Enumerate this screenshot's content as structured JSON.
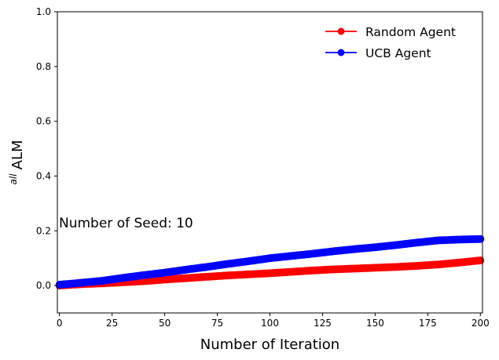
{
  "chart_data": {
    "type": "line",
    "title": "",
    "xlabel": "Number of Iteration",
    "ylabel_italic": "all",
    "ylabel": "ALM",
    "xlim": [
      -1,
      201
    ],
    "ylim": [
      -0.1,
      1.0
    ],
    "xticks": [
      0,
      25,
      50,
      75,
      100,
      125,
      150,
      175,
      200
    ],
    "xtick_labels": [
      "0",
      "25",
      "50",
      "75",
      "100",
      "125",
      "150",
      "175",
      "200"
    ],
    "yticks": [
      0.0,
      0.2,
      0.4,
      0.6,
      0.8,
      1.0
    ],
    "ytick_labels": [
      "0.0",
      "0.2",
      "0.4",
      "0.6",
      "0.8",
      "1.0"
    ],
    "grid": false,
    "legend_position": "top-right",
    "annotation": "Number of Seed: 10",
    "series": [
      {
        "name": "Random Agent",
        "color": "#ff0000",
        "marker": "circle",
        "x": [
          0,
          10,
          20,
          30,
          40,
          50,
          60,
          70,
          80,
          90,
          100,
          110,
          120,
          130,
          140,
          150,
          160,
          170,
          180,
          190,
          200
        ],
        "y": [
          0.0,
          0.005,
          0.008,
          0.012,
          0.016,
          0.022,
          0.027,
          0.032,
          0.037,
          0.041,
          0.045,
          0.05,
          0.055,
          0.059,
          0.062,
          0.065,
          0.068,
          0.072,
          0.077,
          0.084,
          0.092
        ]
      },
      {
        "name": "UCB Agent",
        "color": "#0000ff",
        "marker": "circle",
        "x": [
          0,
          10,
          20,
          30,
          40,
          50,
          60,
          70,
          80,
          90,
          100,
          110,
          120,
          130,
          140,
          150,
          160,
          170,
          180,
          190,
          200
        ],
        "y": [
          0.003,
          0.01,
          0.017,
          0.028,
          0.038,
          0.047,
          0.058,
          0.068,
          0.079,
          0.089,
          0.1,
          0.108,
          0.116,
          0.125,
          0.133,
          0.14,
          0.148,
          0.157,
          0.165,
          0.168,
          0.17
        ]
      }
    ]
  }
}
